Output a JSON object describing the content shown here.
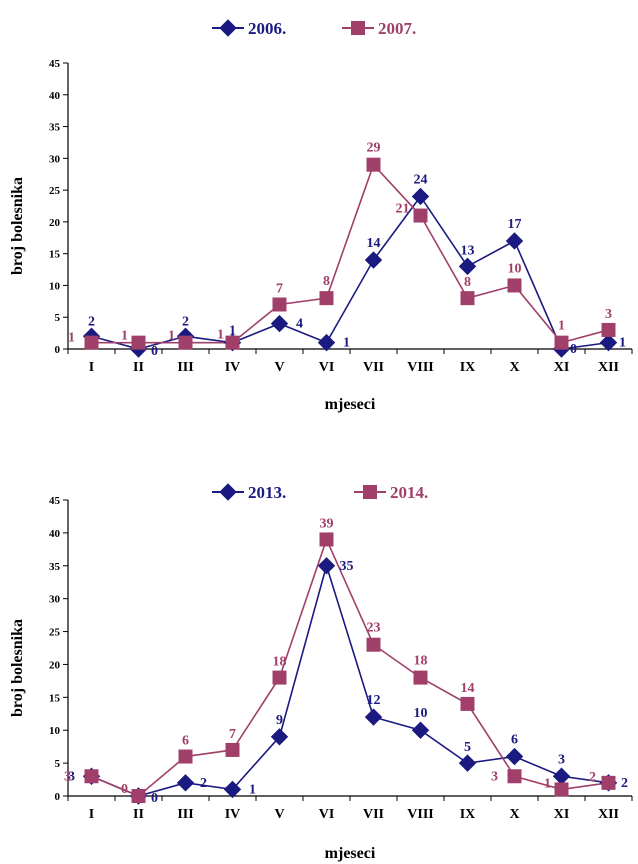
{
  "chart_data": [
    {
      "type": "line",
      "categories": [
        "I",
        "II",
        "III",
        "IV",
        "V",
        "VI",
        "VII",
        "VIII",
        "IX",
        "X",
        "XI",
        "XII"
      ],
      "series": [
        {
          "name": "2006.",
          "color": "#1a1a80",
          "marker": "diamond",
          "values": [
            2,
            0,
            2,
            1,
            4,
            1,
            14,
            24,
            13,
            17,
            0,
            1
          ]
        },
        {
          "name": "2007.",
          "color": "#a0406a",
          "marker": "square",
          "values": [
            1,
            1,
            1,
            1,
            7,
            8,
            29,
            21,
            8,
            10,
            1,
            3
          ]
        }
      ],
      "xlabel": "mjeseci",
      "ylabel": "broj bolesnika",
      "ylim": [
        0,
        45
      ],
      "yticks": [
        0,
        5,
        10,
        15,
        20,
        25,
        30,
        35,
        40,
        45
      ],
      "legend": "top-center",
      "grid": false
    },
    {
      "type": "line",
      "categories": [
        "I",
        "II",
        "III",
        "IV",
        "V",
        "VI",
        "VII",
        "VIII",
        "IX",
        "X",
        "XI",
        "XII"
      ],
      "series": [
        {
          "name": "2013.",
          "color": "#1a1a80",
          "marker": "diamond",
          "values": [
            3,
            0,
            2,
            1,
            9,
            35,
            12,
            10,
            5,
            6,
            3,
            2
          ]
        },
        {
          "name": "2014.",
          "color": "#a0406a",
          "marker": "square",
          "values": [
            3,
            0,
            6,
            7,
            18,
            39,
            23,
            18,
            14,
            3,
            1,
            2
          ]
        }
      ],
      "xlabel": "mjeseci",
      "ylabel": "broj bolesnika",
      "ylim": [
        0,
        45
      ],
      "yticks": [
        0,
        5,
        10,
        15,
        20,
        25,
        30,
        35,
        40,
        45
      ],
      "legend": "top-center",
      "grid": false
    }
  ]
}
